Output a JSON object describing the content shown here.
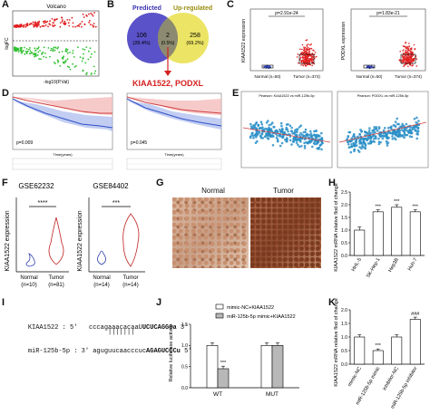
{
  "panels": {
    "A": "A",
    "B": "B",
    "C": "C",
    "D": "D",
    "E": "E",
    "F": "F",
    "G": "G",
    "H": "H",
    "I": "I",
    "J": "J",
    "K": "K"
  },
  "panelA": {
    "title": "Volcano",
    "xlabel": "-log10(P.Val)",
    "ylabel": "logFC"
  },
  "panelB": {
    "left_label": "Predicted",
    "right_label": "Up-regulated",
    "left_count": "106",
    "left_pct": "(28.4%)",
    "mid_count": "2",
    "mid_pct": "(0.5%)",
    "right_count": "258",
    "right_pct": "(69.2%)",
    "result": "KIAA1522, PODXL",
    "colors": {
      "left": "#5a52c8",
      "right": "#e8e060",
      "result": "#d42020"
    }
  },
  "panelC": {
    "left": {
      "ylabel": "KIAA1522 expression",
      "pval": "p=2.91e-24",
      "groups": [
        "Normal (n=50)",
        "Tumor (n=374)"
      ]
    },
    "right": {
      "ylabel": "PODXL expression",
      "pval": "p=1.83e-21",
      "groups": [
        "Normal (n=50)",
        "Tumor (n=374)"
      ]
    }
  },
  "panelD": {
    "left_p": "p=0.009",
    "right_p": "p=0.045",
    "xlabel": "Time(years)",
    "ylabel": "Survival probability"
  },
  "panelE": {
    "left_title": "Pearson: KIAA1522 vs miR-125b-5p",
    "right_title": "Pearson: PODXL vs miR-125b-5p"
  },
  "panelF": {
    "ylabel": "KIAA1522 expression",
    "left": {
      "title": "GSE62232",
      "sig": "****",
      "groups": [
        "Normal",
        "Tumor"
      ],
      "ns": [
        "(n=10)",
        "(n=81)"
      ]
    },
    "right": {
      "title": "GSE84402",
      "sig": "***",
      "groups": [
        "Normal",
        "Tumor"
      ],
      "ns": [
        "(n=14)",
        "(n=14)"
      ]
    }
  },
  "panelG": {
    "left": "Normal",
    "right": "Tumor"
  },
  "panelH": {
    "ylabel": "KIAA1522 mRNA relative flod of change",
    "sig": "***"
  },
  "panelI": {
    "gene1": "KIAA1522 : 5'",
    "seq1_plain": "cccagaaacacaaU",
    "seq1_bold": "UCUCAGGGa",
    "end1": "3'",
    "pairs": "|||||||",
    "gene2": "miR-125b-5p : 3'",
    "seq2_plain": "aguguucaacccuc",
    "seq2_bold": "AGAGUCCCu",
    "end2": "5'"
  },
  "panelJ": {
    "ylabel": "Relative luciferase activity",
    "legend": [
      "mimic-NC+KIAA1522",
      "miR-125b-5p mimic+KIAA1522"
    ],
    "sig": "***"
  },
  "panelK": {
    "ylabel": "KIAA1522 mRNA relative flod of change",
    "sig1": "***",
    "sig2": "###"
  },
  "chart_data": [
    {
      "panel": "H",
      "type": "bar",
      "categories": [
        "HHL-5",
        "SK-Hep-1",
        "Hep3B",
        "Huh-7"
      ],
      "values": [
        1.0,
        1.72,
        1.9,
        1.72
      ],
      "errors": [
        0.12,
        0.08,
        0.1,
        0.08
      ],
      "ylim": [
        0,
        2.5
      ],
      "yticks": [
        "0.0",
        "0.5",
        "1.0",
        "1.5",
        "2.0",
        "2.5"
      ],
      "sig": [
        "",
        "***",
        "***",
        "***"
      ]
    },
    {
      "panel": "J",
      "type": "bar",
      "categories": [
        "WT",
        "MUT"
      ],
      "series": [
        {
          "name": "mimic-NC+KIAA1522",
          "values": [
            1.0,
            1.0
          ]
        },
        {
          "name": "miR-125b-5p mimic+KIAA1522",
          "values": [
            0.45,
            1.0
          ]
        }
      ],
      "ylim": [
        0,
        1.5
      ],
      "yticks": [
        "0.0",
        "0.5",
        "1.0",
        "1.5"
      ]
    },
    {
      "panel": "K",
      "type": "bar",
      "categories": [
        "mimic-NC",
        "miR-125b-5p mimic",
        "inhibitor-NC",
        "miR-125b-5p inhibitor"
      ],
      "values": [
        1.0,
        0.5,
        1.0,
        1.65
      ],
      "errors": [
        0.08,
        0.06,
        0.08,
        0.08
      ],
      "ylim": [
        0,
        2.0
      ],
      "yticks": [
        "0.0",
        "0.5",
        "1.0",
        "1.5",
        "2.0"
      ],
      "sig": [
        "",
        "***",
        "",
        "###"
      ]
    }
  ]
}
